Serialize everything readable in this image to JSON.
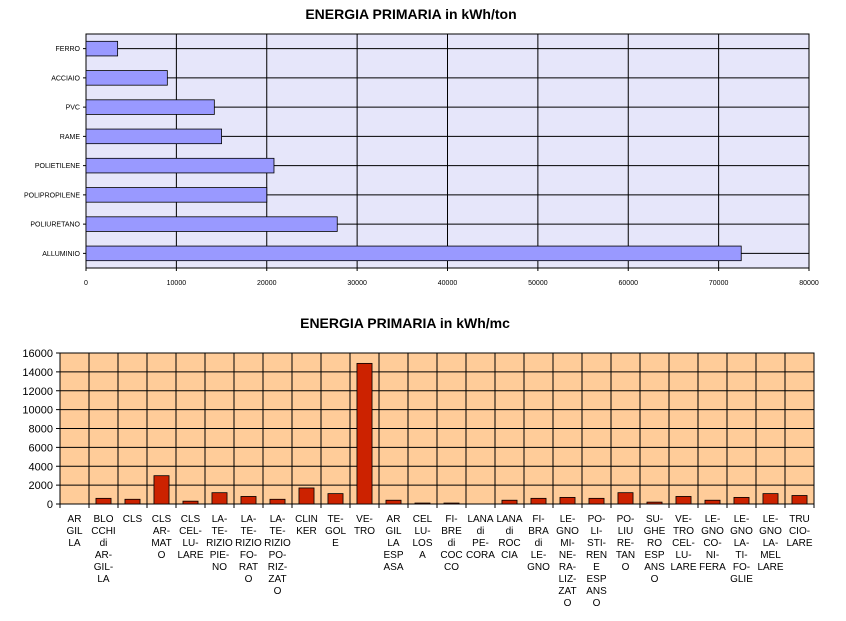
{
  "chart_data": [
    {
      "type": "bar",
      "orientation": "horizontal",
      "title": "ENERGIA PRIMARIA in kWh/ton",
      "categories": [
        "FERRO",
        "ACCIAIO",
        "PVC",
        "RAME",
        "POLIETILENE",
        "POLIPROPILENE",
        "POLIURETANO",
        "ALLUMINIO"
      ],
      "values": [
        3500,
        9000,
        14200,
        15000,
        20800,
        20000,
        27800,
        72500
      ],
      "xlim": [
        0,
        80000
      ],
      "xticks": [
        "0",
        "10000",
        "20000",
        "30000",
        "40000",
        "50000",
        "60000",
        "70000",
        "80000"
      ],
      "grid": true,
      "colors": {
        "bar": "#9999ff",
        "plot_bg": "#e6e6fa"
      }
    },
    {
      "type": "bar",
      "title": "ENERGIA PRIMARIA in kWh/mc",
      "categories": [
        "AR GIL LA",
        "BLO CCHI di AR- GIL- LA",
        "CLS",
        "CLS AR- MAT O",
        "CLS CEL- LU- LARE",
        "LA- TE- RIZIO PIE- NO",
        "LA- TE- RIZIO FO- RAT O",
        "LA- TE- RIZIO PO- RIZ- ZAT O",
        "CLIN KER",
        "TE- GOL E",
        "VE- TRO",
        "AR GIL LA ESP ASA",
        "CEL LU- LOS A",
        "FI- BRE di COC CO",
        "LANA di PE- CORA",
        "LANA di ROC CIA",
        "FI- BRA di LE- GNO",
        "LE- GNO MI- NE- RA- LIZ- ZAT O",
        "PO- LI- STI- REN E ESP ANS O",
        "PO- LIU RE- TAN O",
        "SU- GHE RO ESP ANS O",
        "VE- TRO CEL- LU- LARE",
        "LE- GNO CO- NI- FERA",
        "LE- GNO LA- TI- FO- GLIE",
        "LE- GNO LA- MEL LARE",
        "TRU CIO- LARE"
      ],
      "values": [
        0,
        600,
        500,
        3000,
        300,
        1200,
        800,
        500,
        1700,
        1100,
        14900,
        400,
        100,
        100,
        0,
        400,
        600,
        700,
        600,
        1200,
        200,
        800,
        400,
        700,
        1100,
        900
      ],
      "ylim": [
        0,
        16000
      ],
      "yticks": [
        "0",
        "2000",
        "4000",
        "6000",
        "8000",
        "10000",
        "12000",
        "14000",
        "16000"
      ],
      "grid": true,
      "colors": {
        "bar": "#cc2200",
        "plot_bg": "#ffcc99"
      }
    }
  ]
}
